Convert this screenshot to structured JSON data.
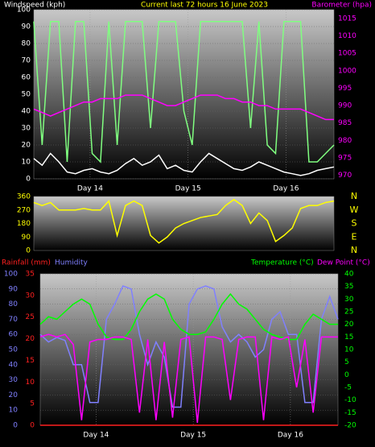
{
  "chart_data": [
    {
      "type": "line",
      "title": "Current last 72 hours 16 June 2023",
      "ylabel": "Windspeed (kph)",
      "y2label": "Barometer (hpa)",
      "titlecolor": "#ffff00",
      "ycolor": "#ffffff",
      "y2color": "#ff00ff",
      "x": [
        0,
        2,
        4,
        6,
        8,
        10,
        12,
        14,
        16,
        18,
        20,
        22,
        24,
        26,
        28,
        30,
        32,
        34,
        36,
        38,
        40,
        42,
        44,
        46,
        48,
        50,
        52,
        54,
        56,
        58,
        60,
        62,
        64,
        66,
        68,
        70,
        72
      ],
      "xlim": [
        0,
        72
      ],
      "xticks": [
        {
          "value": 13.5,
          "label": "Day 14"
        },
        {
          "value": 37,
          "label": "Day 15"
        },
        {
          "value": 60.5,
          "label": "Day 16"
        }
      ],
      "ylim": [
        0,
        100
      ],
      "yticks": [
        0,
        10,
        20,
        30,
        40,
        50,
        60,
        70,
        80,
        90,
        100
      ],
      "y2lim": [
        969,
        1017.5
      ],
      "y2ticks": [
        970,
        975,
        980,
        985,
        990,
        995,
        1000,
        1005,
        1010,
        1015
      ],
      "grid": true,
      "series": [
        {
          "color": "#80ff80",
          "axis": "y",
          "values": [
            93,
            20,
            93,
            93,
            10,
            93,
            93,
            15,
            10,
            93,
            20,
            93,
            93,
            93,
            30,
            93,
            93,
            93,
            40,
            20,
            93,
            93,
            93,
            93,
            93,
            93,
            30,
            93,
            20,
            15,
            93,
            93,
            93,
            10,
            10,
            15,
            20
          ]
        },
        {
          "color": "#ffffff",
          "axis": "y",
          "values": [
            12,
            8,
            15,
            10,
            4,
            3,
            5,
            6,
            4,
            3,
            5,
            9,
            12,
            8,
            10,
            14,
            6,
            8,
            5,
            4,
            10,
            15,
            12,
            9,
            6,
            5,
            7,
            10,
            8,
            6,
            4,
            3,
            2,
            3,
            5,
            6,
            7
          ]
        },
        {
          "color": "#ff00ff",
          "axis": "y2",
          "values": [
            989,
            988,
            987,
            988,
            989,
            990,
            991,
            991,
            992,
            992,
            992,
            993,
            993,
            993,
            992,
            991,
            990,
            990,
            991,
            992,
            993,
            993,
            993,
            992,
            992,
            991,
            991,
            990,
            990,
            989,
            989,
            989,
            989,
            988,
            987,
            986,
            986
          ]
        }
      ]
    },
    {
      "type": "line",
      "ycolor": "#ffff00",
      "x": [
        0,
        2,
        4,
        6,
        8,
        10,
        12,
        14,
        16,
        18,
        20,
        22,
        24,
        26,
        28,
        30,
        32,
        34,
        36,
        38,
        40,
        42,
        44,
        46,
        48,
        50,
        52,
        54,
        56,
        58,
        60,
        62,
        64,
        66,
        68,
        70,
        72
      ],
      "xlim": [
        0,
        72
      ],
      "ylim": [
        0,
        360
      ],
      "yticks": [
        0,
        90,
        180,
        270,
        360
      ],
      "compass": [
        "N",
        "W",
        "S",
        "E",
        "N"
      ],
      "series": [
        {
          "color": "#ffff00",
          "axis": "y",
          "values": [
            320,
            300,
            320,
            270,
            270,
            270,
            280,
            270,
            270,
            330,
            100,
            300,
            330,
            300,
            100,
            50,
            90,
            150,
            180,
            200,
            220,
            230,
            240,
            300,
            340,
            300,
            180,
            250,
            200,
            60,
            100,
            150,
            280,
            300,
            300,
            320,
            330
          ]
        }
      ]
    },
    {
      "type": "line",
      "ycolor": "#8080ff",
      "y2color": "#00ff00",
      "y3color": "#ff2020",
      "x": [
        0,
        2,
        4,
        6,
        8,
        10,
        12,
        14,
        16,
        18,
        20,
        22,
        24,
        26,
        28,
        30,
        32,
        34,
        36,
        38,
        40,
        42,
        44,
        46,
        48,
        50,
        52,
        54,
        56,
        58,
        60,
        62,
        64,
        66,
        68,
        70,
        72
      ],
      "xlim": [
        0,
        72
      ],
      "xticks": [
        {
          "value": 13.5,
          "label": "Day 14"
        },
        {
          "value": 37,
          "label": "Day 15"
        },
        {
          "value": 60.5,
          "label": "Day 16"
        }
      ],
      "ylim": [
        0,
        100
      ],
      "yticks": [
        0,
        10,
        20,
        30,
        40,
        50,
        60,
        70,
        80,
        90,
        100
      ],
      "y2lim": [
        -20,
        40
      ],
      "y2ticks": [
        -20,
        -15,
        -10,
        -5,
        0,
        5,
        10,
        15,
        20,
        25,
        30,
        35,
        40
      ],
      "y3lim": [
        0,
        35
      ],
      "y3ticks": [
        0,
        5,
        10,
        15,
        20,
        25,
        30,
        35
      ],
      "grid": true,
      "series": [
        {
          "name": "Rainfall (mm)",
          "color": "#ff2020",
          "axis": "y3",
          "values": [
            0,
            0,
            0,
            0,
            0,
            0,
            0,
            0,
            0,
            0,
            0,
            0,
            0,
            0,
            0,
            0,
            0,
            0,
            0,
            0,
            0,
            0,
            0,
            0,
            0,
            0,
            0,
            0,
            0,
            0,
            0,
            0,
            0,
            0,
            0,
            0,
            0
          ]
        },
        {
          "name": "Humidity",
          "color": "#8080ff",
          "axis": "y",
          "values": [
            60,
            55,
            58,
            56,
            40,
            40,
            15,
            15,
            70,
            80,
            92,
            90,
            60,
            40,
            55,
            45,
            12,
            12,
            80,
            90,
            92,
            90,
            65,
            55,
            60,
            55,
            45,
            50,
            70,
            75,
            60,
            60,
            15,
            15,
            70,
            85,
            70
          ]
        },
        {
          "name": "Temperature (°C)",
          "color": "#00ff00",
          "axis": "y2",
          "values": [
            20,
            23,
            22,
            25,
            28,
            30,
            28,
            20,
            15,
            14,
            14,
            18,
            25,
            30,
            32,
            30,
            22,
            18,
            16,
            16,
            17,
            22,
            28,
            32,
            28,
            26,
            22,
            18,
            16,
            15,
            14,
            14,
            20,
            24,
            22,
            20,
            20
          ]
        },
        {
          "name": "Dew Point (°C)",
          "color": "#ff00ff",
          "axis": "y2",
          "values": [
            15,
            16,
            15,
            16,
            12,
            -18,
            13,
            14,
            14,
            15,
            15,
            14,
            -15,
            14,
            -18,
            13,
            -17,
            14,
            15,
            -19,
            15,
            15,
            14,
            -10,
            14,
            15,
            15,
            -18,
            15,
            14,
            15,
            -5,
            14,
            -15,
            15,
            15,
            15
          ]
        }
      ]
    }
  ]
}
